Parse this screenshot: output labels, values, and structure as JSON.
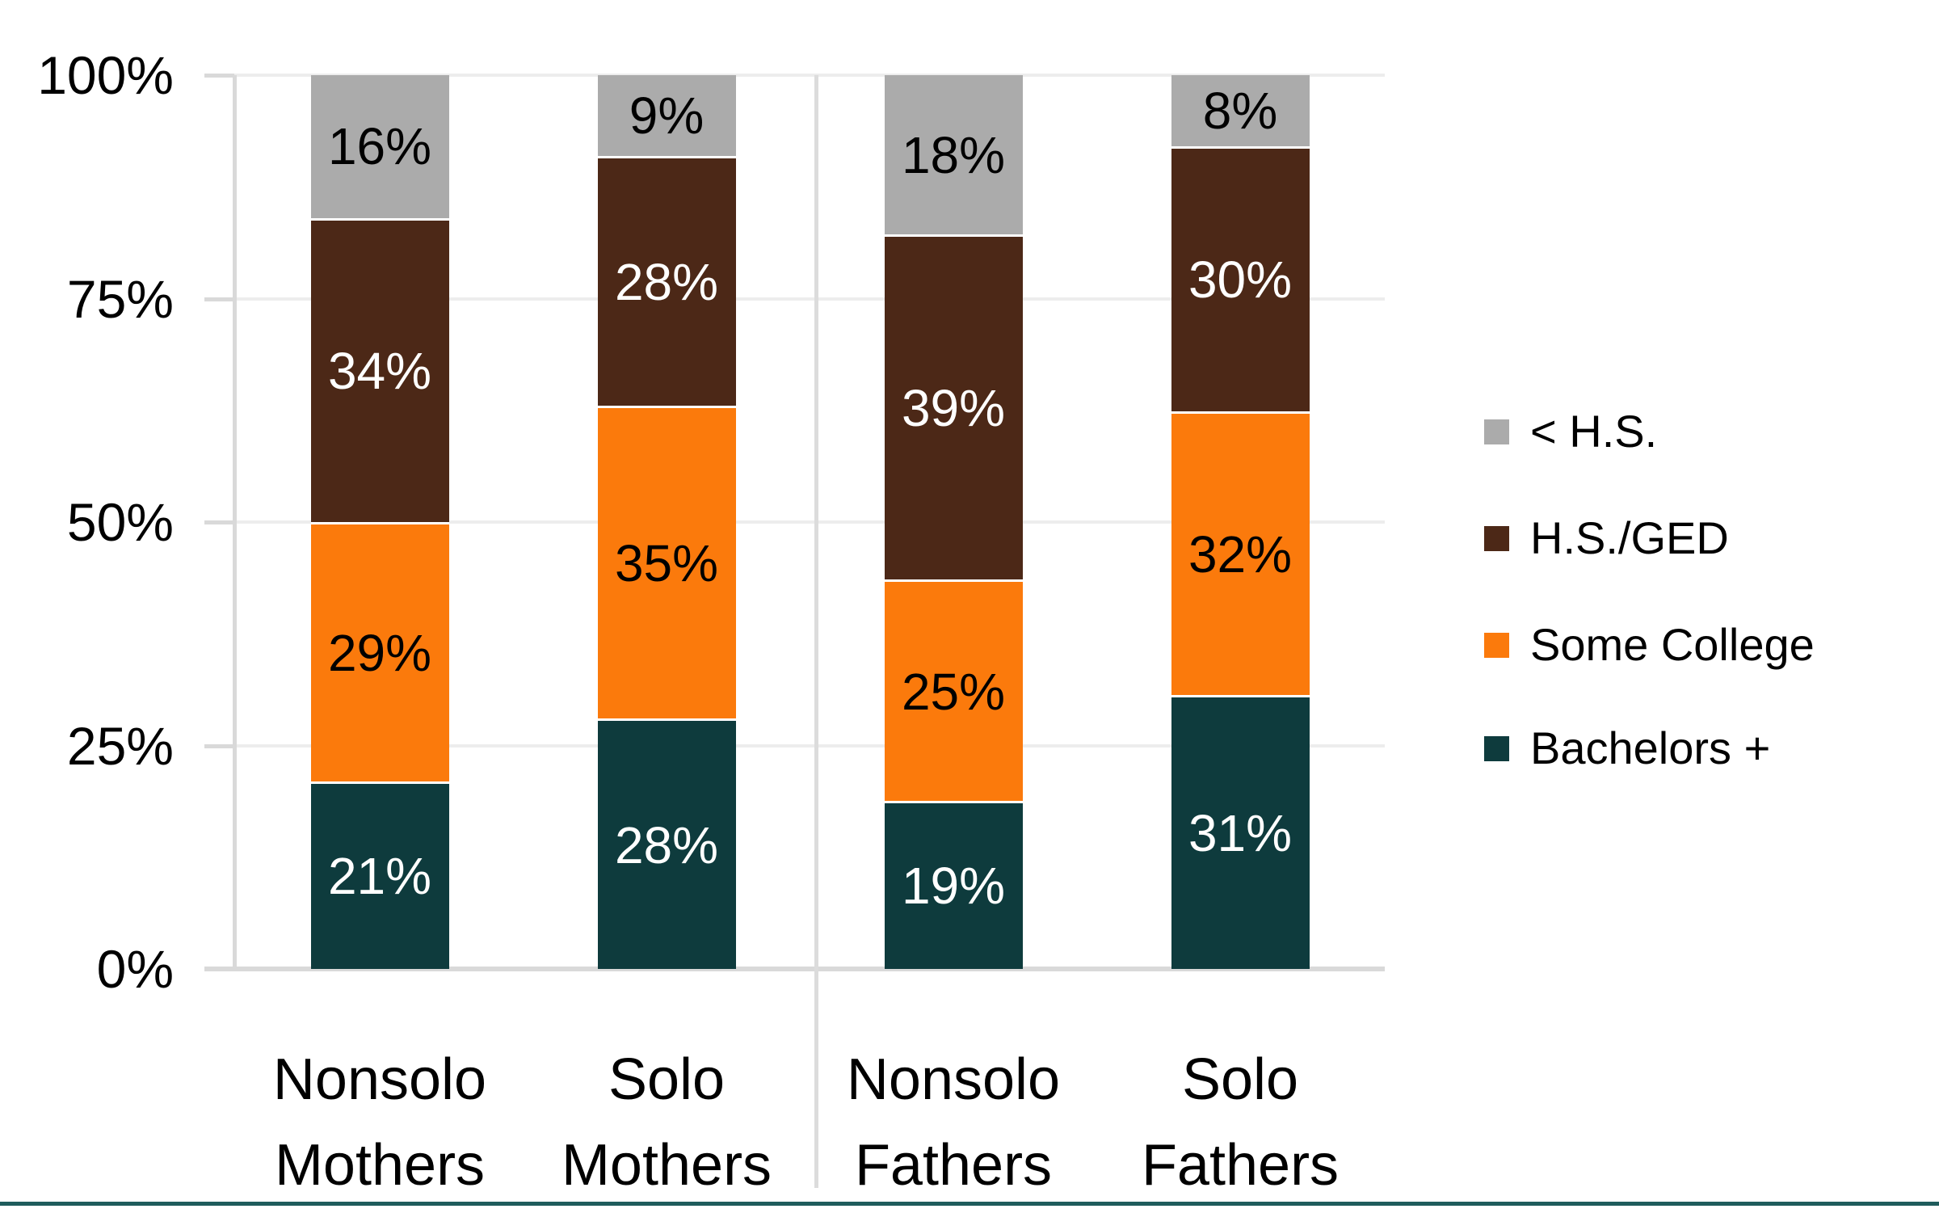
{
  "chart_data": {
    "type": "bar",
    "stacked": true,
    "percent_scale": true,
    "title": "",
    "categories": [
      "Nonsolo Mothers",
      "Solo Mothers",
      "Nonsolo Fathers",
      "Solo Fathers"
    ],
    "series": [
      {
        "name": "Bachelors +",
        "color": "#0E3B3D",
        "text_color": "#FFFFFF",
        "values": [
          21,
          28,
          19,
          31
        ]
      },
      {
        "name": "Some College",
        "color": "#FB7A0C",
        "text_color": "#000000",
        "values": [
          29,
          35,
          25,
          32
        ]
      },
      {
        "name": "H.S./GED",
        "color": "#4C2817",
        "text_color": "#FFFFFF",
        "values": [
          34,
          28,
          39,
          30
        ]
      },
      {
        "name": "< H.S.",
        "color": "#ABABAB",
        "text_color": "#000000",
        "values": [
          16,
          9,
          18,
          8
        ]
      }
    ],
    "value_suffix": "%",
    "y_axis": {
      "min": 0,
      "max": 100,
      "ticks": [
        "0%",
        "25%",
        "50%",
        "75%",
        "100%"
      ],
      "tick_values": [
        0,
        25,
        50,
        75,
        100
      ]
    },
    "legend": {
      "position": "right",
      "items": [
        {
          "label": "< H.S.",
          "color": "#ABABAB"
        },
        {
          "label": "H.S./GED",
          "color": "#4C2817"
        },
        {
          "label": "Some College",
          "color": "#FB7A0C"
        },
        {
          "label": "Bachelors +",
          "color": "#0E3B3D"
        }
      ]
    },
    "grid": true,
    "group_divider_after_category_index": 1,
    "colors": {
      "gridline": "#EDEDED",
      "axis": "#D9D9D9",
      "group_divider": "#DCDCDC",
      "bottom_accent": "#1F5C5C",
      "background": "#FFFFFF"
    }
  }
}
